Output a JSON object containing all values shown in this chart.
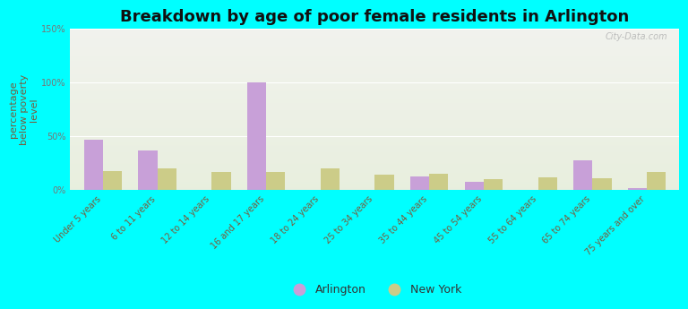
{
  "title": "Breakdown by age of poor female residents in Arlington",
  "ylabel": "percentage\nbelow poverty\nlevel",
  "categories": [
    "Under 5 years",
    "6 to 11 years",
    "12 to 14 years",
    "16 and 17 years",
    "18 to 24 years",
    "25 to 34 years",
    "35 to 44 years",
    "45 to 54 years",
    "55 to 64 years",
    "65 to 74 years",
    "75 years and over"
  ],
  "arlington": [
    47,
    37,
    0,
    100,
    0,
    0,
    13,
    8,
    0,
    28,
    2
  ],
  "newyork": [
    18,
    20,
    17,
    17,
    20,
    14,
    15,
    10,
    12,
    11,
    17
  ],
  "arlington_color": "#c8a0d8",
  "newyork_color": "#cccc88",
  "ylim": [
    0,
    150
  ],
  "yticks": [
    0,
    50,
    100,
    150
  ],
  "ytick_labels": [
    "0%",
    "50%",
    "100%",
    "150%"
  ],
  "bg_color": "#00ffff",
  "bar_width": 0.35,
  "title_fontsize": 13,
  "axis_label_fontsize": 8,
  "tick_fontsize": 7,
  "legend_fontsize": 9,
  "watermark": "City-Data.com",
  "label_color": "#7a5c3c",
  "ytick_color": "#777777"
}
